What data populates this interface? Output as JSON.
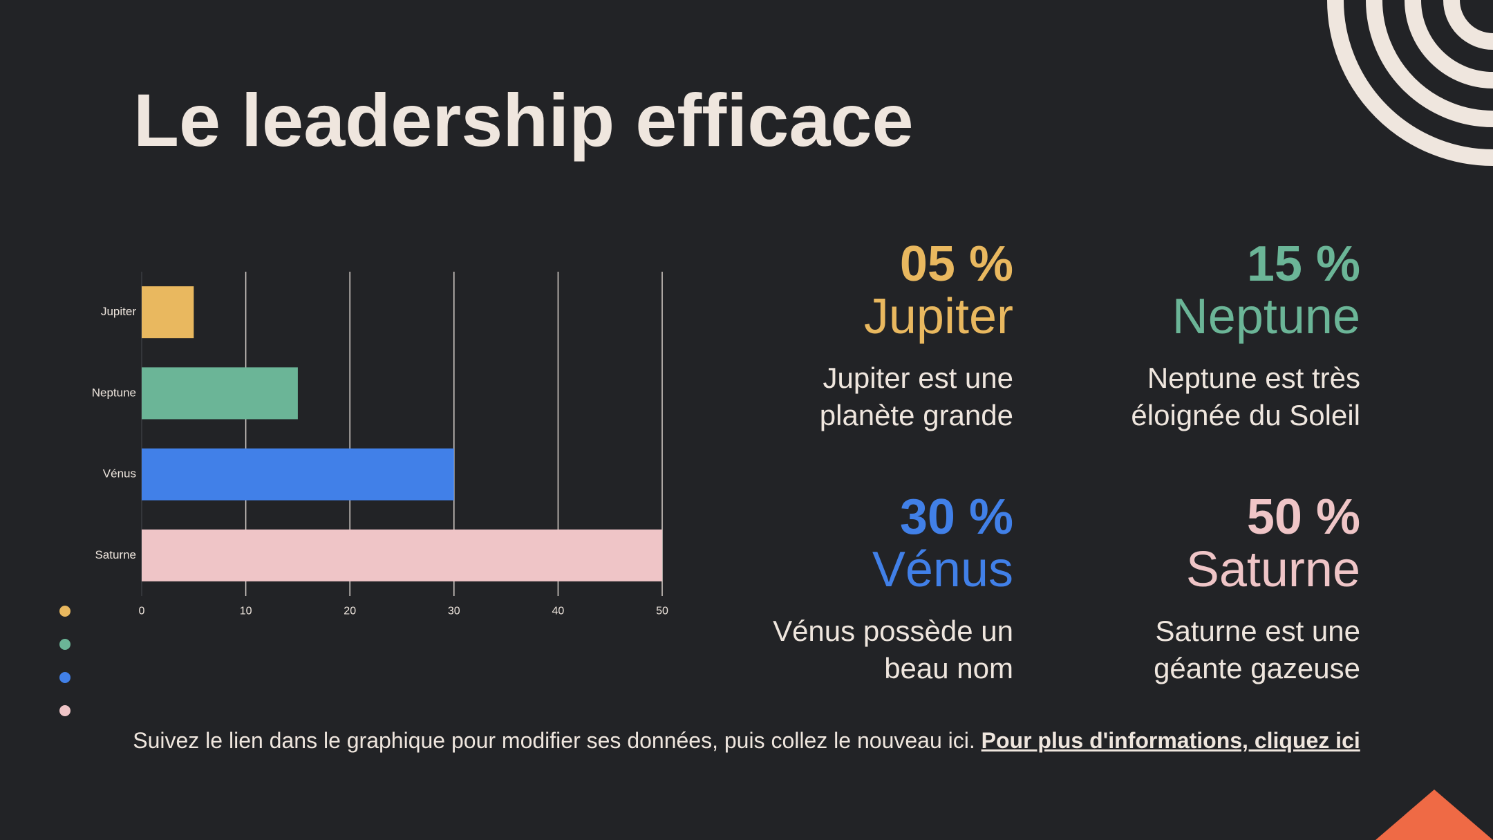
{
  "slide": {
    "title": "Le leadership efficace",
    "footer_text": "Suivez le lien dans le graphique pour modifier ses données, puis collez le nouveau ici. ",
    "footer_link": "Pour plus d'informations, cliquez ici"
  },
  "colors": {
    "background": "#222326",
    "text": "#efe6de",
    "jupiter": "#e9b85f",
    "neptune": "#6bb597",
    "venus": "#4180e8",
    "saturne": "#efc5c7",
    "accent_orange": "#ef6a45",
    "arcs": "#efe6de"
  },
  "stats": [
    {
      "id": "jupiter",
      "pct": "05 %",
      "name": "Jupiter",
      "desc_line1": "Jupiter est une",
      "desc_line2": "planète grande",
      "color": "#e9b85f"
    },
    {
      "id": "neptune",
      "pct": "15 %",
      "name": "Neptune",
      "desc_line1": "Neptune est très",
      "desc_line2": "éloignée du Soleil",
      "color": "#6bb597"
    },
    {
      "id": "venus",
      "pct": "30 %",
      "name": "Vénus",
      "desc_line1": "Vénus possède un",
      "desc_line2": "beau nom",
      "color": "#4180e8"
    },
    {
      "id": "saturne",
      "pct": "50 %",
      "name": "Saturne",
      "desc_line1": "Saturne est une",
      "desc_line2": "géante gazeuse",
      "color": "#efc5c7"
    }
  ],
  "chart_data": {
    "type": "bar",
    "orientation": "horizontal",
    "categories": [
      "Jupiter",
      "Neptune",
      "Vénus",
      "Saturne"
    ],
    "values": [
      5,
      15,
      30,
      50
    ],
    "colors": [
      "#e9b85f",
      "#6bb597",
      "#4180e8",
      "#efc5c7"
    ],
    "xlim": [
      0,
      50
    ],
    "xticks": [
      "0",
      "10",
      "20",
      "30",
      "40",
      "50"
    ],
    "grid": true,
    "legend": "bottom-left",
    "title": "",
    "xlabel": "",
    "ylabel": ""
  }
}
